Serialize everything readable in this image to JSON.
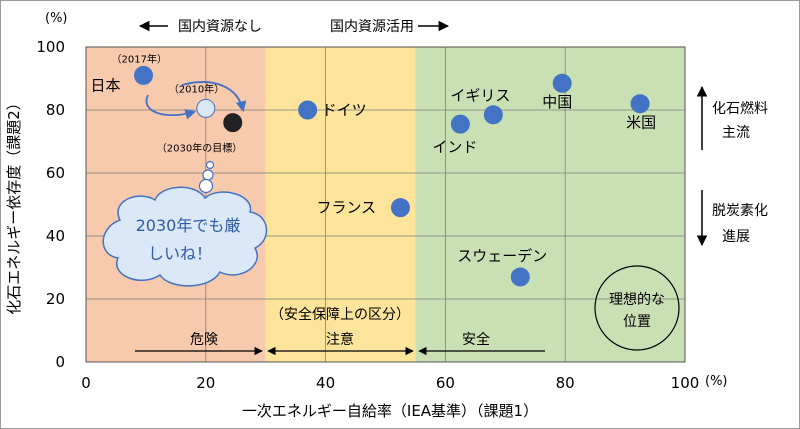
{
  "chart_data": {
    "type": "scatter",
    "xlabel": "一次エネルギー自給率（IEA基準）（課題1）",
    "ylabel": "化石エネルギー依存度（課題2）",
    "x_unit": "(%)",
    "y_unit": "(%)",
    "xlim": [
      0,
      100
    ],
    "ylim": [
      0,
      100
    ],
    "x_ticks": [
      "0",
      "20",
      "40",
      "60",
      "80",
      "100"
    ],
    "y_ticks": [
      "0",
      "20",
      "40",
      "60",
      "80",
      "100"
    ],
    "grid": true,
    "zones": [
      {
        "label": "危険",
        "from": 0,
        "to": 30,
        "color": "#f7c9ad"
      },
      {
        "label": "注意",
        "from": 30,
        "to": 55,
        "color": "#fce49a"
      },
      {
        "label": "安全",
        "from": 55,
        "to": 100,
        "color": "#c9e0b4"
      }
    ],
    "zones_title": "（安全保障上の区分）",
    "points": [
      {
        "label": "日本",
        "year_label": "（2017年）",
        "x": 9.6,
        "y": 91
      },
      {
        "label": "",
        "year_label": "（2010年）",
        "x": 20,
        "y": 80.5
      },
      {
        "label": "",
        "year_label": "（2030年の目標）",
        "x": 24.5,
        "y": 76
      },
      {
        "label": "ドイツ",
        "x": 37,
        "y": 80
      },
      {
        "label": "フランス",
        "x": 52.5,
        "y": 49
      },
      {
        "label": "インド",
        "x": 62.5,
        "y": 75.5
      },
      {
        "label": "イギリス",
        "x": 68,
        "y": 78.5
      },
      {
        "label": "中国",
        "x": 79.5,
        "y": 88.5
      },
      {
        "label": "米国",
        "x": 92.5,
        "y": 82
      },
      {
        "label": "スウェーデン",
        "x": 72.5,
        "y": 27
      }
    ],
    "annotations": {
      "top_left": "国内資源なし",
      "top_right": "国内資源活用",
      "right_up_1": "化石燃料",
      "right_up_2": "主流",
      "right_down_1": "脱炭素化",
      "right_down_2": "進展",
      "bubble_line1": "2030年でも厳",
      "bubble_line2": "しいね！",
      "ideal_line1": "理想的な",
      "ideal_line2": "位置"
    },
    "colors": {
      "marker": "#4472c4",
      "marker_2010": "#dbe8f4",
      "marker_2030": "#222222",
      "bubble_fill": "#dae8f8",
      "bubble_stroke": "#4472c4",
      "bubble_text": "#2e5aa8"
    }
  }
}
